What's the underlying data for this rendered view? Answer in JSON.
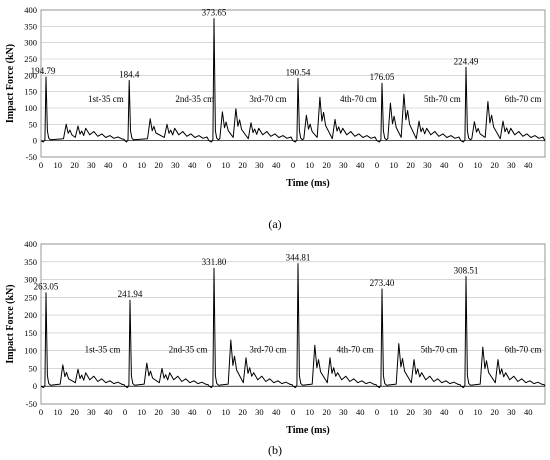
{
  "chart_data": [
    {
      "type": "line",
      "caption": "(a)",
      "xlabel": "Time (ms)",
      "ylabel": "Impact Force (kN)",
      "ylim": [
        -50,
        400
      ],
      "yticks": [
        -50,
        0,
        50,
        100,
        150,
        200,
        250,
        300,
        350,
        400
      ],
      "xticks": [
        0,
        10,
        20,
        30,
        40
      ],
      "segment_count": 6,
      "segment_duration_ms": 50,
      "grid": "horizontal",
      "drops": [
        {
          "label": "1st-35 cm",
          "peak_label": "194.79",
          "peak": 194.79,
          "peak_time": 3,
          "secondary": [
            [
              15,
              50
            ],
            [
              22,
              45
            ]
          ]
        },
        {
          "label": "2nd-35 cm",
          "peak_label": "184.4",
          "peak": 184.4,
          "peak_time": 2.5,
          "secondary": [
            [
              15,
              67
            ],
            [
              25,
              50
            ]
          ]
        },
        {
          "label": "3rd-70 cm",
          "peak_label": "373.65",
          "peak": 373.65,
          "peak_time": 3,
          "secondary": [
            [
              8,
              88
            ],
            [
              16,
              98
            ],
            [
              25,
              55
            ]
          ]
        },
        {
          "label": "4th-70 cm",
          "peak_label": "190.54",
          "peak": 190.54,
          "peak_time": 3,
          "secondary": [
            [
              8,
              78
            ],
            [
              16,
              133
            ],
            [
              25,
              65
            ]
          ]
        },
        {
          "label": "5th-70 cm",
          "peak_label": "176.05",
          "peak": 176.05,
          "peak_time": 3,
          "secondary": [
            [
              8,
              115
            ],
            [
              16,
              142
            ],
            [
              25,
              60
            ]
          ]
        },
        {
          "label": "6th-70 cm",
          "peak_label": "224.49",
          "peak": 224.49,
          "peak_time": 3,
          "secondary": [
            [
              8,
              58
            ],
            [
              16,
              120
            ],
            [
              25,
              60
            ]
          ]
        }
      ]
    },
    {
      "type": "line",
      "caption": "(b)",
      "xlabel": "Time (ms)",
      "ylabel": "Impact Force (kN)",
      "ylim": [
        -50,
        400
      ],
      "yticks": [
        -50,
        0,
        50,
        100,
        150,
        200,
        250,
        300,
        350,
        400
      ],
      "xticks": [
        0,
        10,
        20,
        30,
        40
      ],
      "segment_count": 6,
      "segment_duration_ms": 50,
      "grid": "horizontal",
      "drops": [
        {
          "label": "1st-35 cm",
          "peak_label": "263.05",
          "peak": 263.05,
          "peak_time": 3,
          "secondary": [
            [
              13,
              60
            ],
            [
              22,
              48
            ]
          ]
        },
        {
          "label": "2nd-35 cm",
          "peak_label": "241.94",
          "peak": 241.94,
          "peak_time": 3,
          "secondary": [
            [
              13,
              65
            ],
            [
              22,
              50
            ]
          ]
        },
        {
          "label": "3rd-70 cm",
          "peak_label": "331.80",
          "peak": 331.8,
          "peak_time": 3,
          "secondary": [
            [
              13,
              130
            ],
            [
              22,
              80
            ]
          ]
        },
        {
          "label": "4th-70 cm",
          "peak_label": "344.81",
          "peak": 344.81,
          "peak_time": 3,
          "secondary": [
            [
              13,
              115
            ],
            [
              22,
              80
            ]
          ]
        },
        {
          "label": "5th-70 cm",
          "peak_label": "273.40",
          "peak": 273.4,
          "peak_time": 3,
          "secondary": [
            [
              13,
              120
            ],
            [
              22,
              75
            ]
          ]
        },
        {
          "label": "6th-70 cm",
          "peak_label": "308.51",
          "peak": 308.51,
          "peak_time": 3,
          "secondary": [
            [
              13,
              110
            ],
            [
              22,
              75
            ]
          ]
        }
      ]
    }
  ]
}
